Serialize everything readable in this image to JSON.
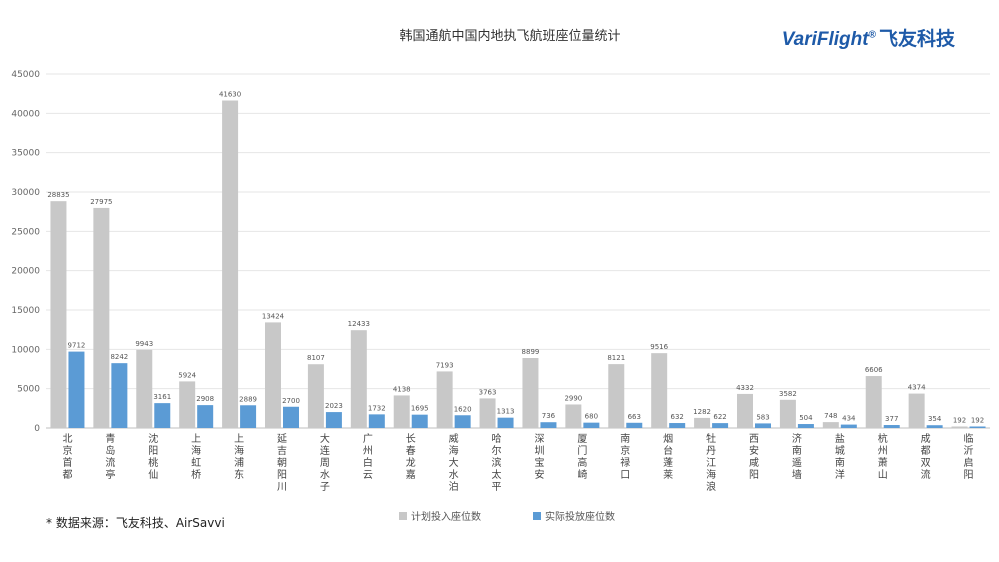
{
  "chart_data": {
    "type": "bar",
    "title": "韩国通航中国内地执飞航班座位量统计",
    "categories": [
      "北京首都",
      "青岛流亭",
      "沈阳桃仙",
      "上海虹桥",
      "上海浦东",
      "延吉朝阳川",
      "大连周水子",
      "广州白云",
      "长春龙嘉",
      "威海大水泊",
      "哈尔滨太平",
      "深圳宝安",
      "厦门高崎",
      "南京禄口",
      "烟台蓬莱",
      "牡丹江海浪",
      "西安咸阳",
      "济南遥墙",
      "盐城南洋",
      "杭州萧山",
      "成都双流",
      "临沂启阳"
    ],
    "series": [
      {
        "name": "计划投入座位数",
        "color": "#c8c8c8",
        "values": [
          28835,
          27975,
          9943,
          5924,
          41630,
          13424,
          8107,
          12433,
          4138,
          7193,
          3763,
          8899,
          2990,
          8121,
          9516,
          1282,
          4332,
          3582,
          748,
          6606,
          4374,
          192
        ]
      },
      {
        "name": "实际投放座位数",
        "color": "#5b9bd5",
        "values": [
          9712,
          8242,
          3161,
          2908,
          2889,
          2700,
          2023,
          1732,
          1695,
          1620,
          1313,
          736,
          680,
          663,
          632,
          622,
          583,
          504,
          434,
          377,
          354,
          192
        ]
      }
    ],
    "ylim": [
      0,
      45000
    ],
    "yticks": [
      0,
      5000,
      10000,
      15000,
      20000,
      25000,
      30000,
      35000,
      40000,
      45000
    ],
    "grid": true,
    "legend_position": "bottom"
  },
  "source_note": "* 数据来源：飞友科技、AirSavvi",
  "logo": {
    "text_en": "VariFlight",
    "reg": "®",
    "text_cn": "飞友科技"
  }
}
